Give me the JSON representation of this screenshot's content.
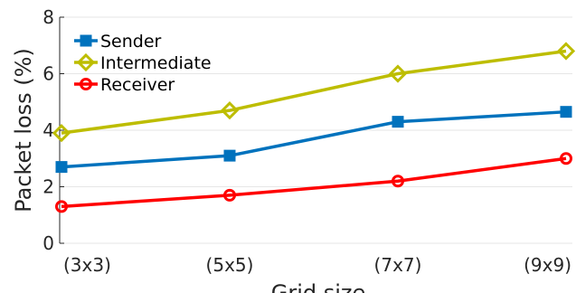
{
  "chart_data": {
    "type": "line",
    "title": "",
    "xlabel": "Grid size",
    "ylabel": "Packet loss (%)",
    "categories": [
      "(3x3)",
      "(5x5)",
      "(7x7)",
      "(9x9)"
    ],
    "ylim": [
      0,
      8
    ],
    "yticks": [
      0,
      2,
      4,
      6,
      8
    ],
    "grid": true,
    "legend_position": "top-left",
    "series": [
      {
        "name": "Sender",
        "values": [
          2.7,
          3.1,
          4.3,
          4.65
        ],
        "color": "#0072BD",
        "marker": "square"
      },
      {
        "name": "Intermediate",
        "values": [
          3.9,
          4.7,
          6.0,
          6.8
        ],
        "color": "#BDBD00",
        "marker": "diamond"
      },
      {
        "name": "Receiver",
        "values": [
          1.3,
          1.7,
          2.2,
          3.0
        ],
        "color": "#FF0000",
        "marker": "circle"
      }
    ]
  }
}
